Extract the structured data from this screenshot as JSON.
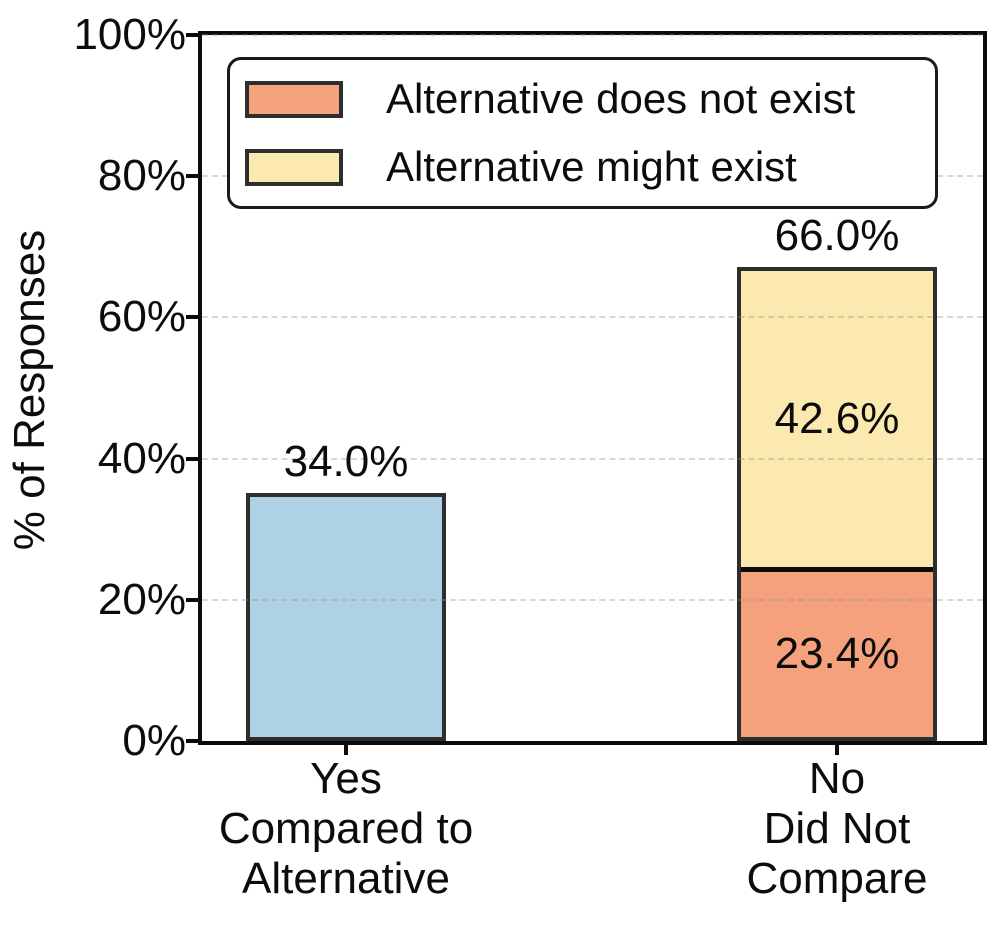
{
  "chart_data": {
    "type": "bar",
    "stacked": true,
    "title": "",
    "xlabel": "",
    "ylabel": "% of Responses",
    "ylim": [
      0,
      100
    ],
    "ytick_values": [
      0,
      20,
      40,
      60,
      80,
      100
    ],
    "ytick_labels": [
      "0%",
      "20%",
      "40%",
      "60%",
      "80%",
      "100%"
    ],
    "grid": {
      "axis": "y",
      "style": "dashed",
      "gridline_at": [
        20,
        40,
        60,
        80,
        100
      ]
    },
    "legend": {
      "position": "upper left",
      "entries": [
        {
          "label": "Alternative does not exist",
          "color": "#F5A17E"
        },
        {
          "label": "Alternative might exist",
          "color": "#FBE9AF"
        }
      ]
    },
    "categories": [
      {
        "tick_lines": [
          "Yes",
          "Compared to",
          "Alternative"
        ]
      },
      {
        "tick_lines": [
          "No",
          "Did Not",
          "Compare"
        ]
      }
    ],
    "bars": [
      {
        "category": "Yes Compared to Alternative",
        "total_value": 34.0,
        "total_label": "34.0%",
        "segments": [
          {
            "name": "Compared to alternative",
            "value": 34.0,
            "label": "",
            "color": "#AED1E6"
          }
        ]
      },
      {
        "category": "No Did Not Compare",
        "total_value": 66.0,
        "total_label": "66.0%",
        "segments": [
          {
            "name": "Alternative does not exist",
            "value": 23.4,
            "label": "23.4%",
            "color": "#F5A17E"
          },
          {
            "name": "Alternative might exist",
            "value": 42.6,
            "label": "42.6%",
            "color": "#FBE9AF"
          }
        ]
      }
    ],
    "colors": {
      "bar_edge": "#2e2e2e",
      "segment_divider": "#0c0c0c",
      "axis": "#0c0c0c",
      "gridline": "#dcdcdc",
      "background": "#ffffff"
    }
  }
}
